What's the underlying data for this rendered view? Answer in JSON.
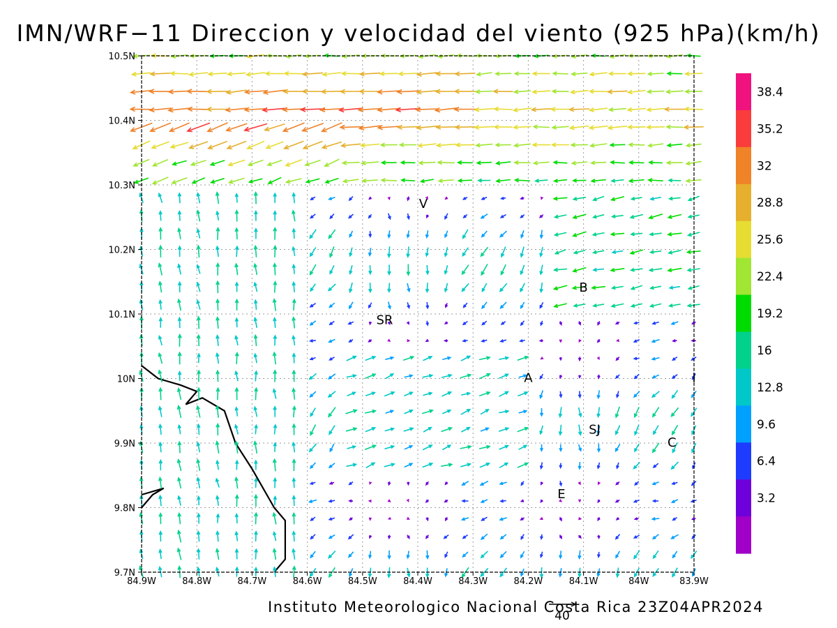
{
  "title": "IMN/WRF−11 Direccion y velocidad del viento (925 hPa)(km/h)",
  "footer": "Instituto Meteorologico Nacional Costa Rica  23Z04APR2024",
  "reference_vector": {
    "value": 40,
    "label": "40"
  },
  "axes": {
    "lon_ticks": [
      {
        "value": -84.9,
        "label": "84.9W"
      },
      {
        "value": -84.8,
        "label": "84.8W"
      },
      {
        "value": -84.7,
        "label": "84.7W"
      },
      {
        "value": -84.6,
        "label": "84.6W"
      },
      {
        "value": -84.5,
        "label": "84.5W"
      },
      {
        "value": -84.4,
        "label": "84.4W"
      },
      {
        "value": -84.3,
        "label": "84.3W"
      },
      {
        "value": -84.2,
        "label": "84.2W"
      },
      {
        "value": -84.1,
        "label": "84.1W"
      },
      {
        "value": -84.0,
        "label": "84W"
      },
      {
        "value": -83.9,
        "label": "83.9W"
      }
    ],
    "lat_ticks": [
      {
        "value": 10.5,
        "label": "10.5N"
      },
      {
        "value": 10.4,
        "label": "10.4N"
      },
      {
        "value": 10.3,
        "label": "10.3N"
      },
      {
        "value": 10.2,
        "label": "10.2N"
      },
      {
        "value": 10.1,
        "label": "10.1N"
      },
      {
        "value": 10.0,
        "label": "10N"
      },
      {
        "value": 9.9,
        "label": "9.9N"
      },
      {
        "value": 9.8,
        "label": "9.8N"
      },
      {
        "value": 9.7,
        "label": "9.7N"
      }
    ],
    "lon_range": [
      -84.9,
      -83.9
    ],
    "lat_range": [
      9.7,
      10.5
    ],
    "grid": true
  },
  "colorbar": {
    "labels": [
      "38.4",
      "35.2",
      "32",
      "28.8",
      "25.6",
      "22.4",
      "19.2",
      "16",
      "12.8",
      "9.6",
      "6.4",
      "3.2"
    ],
    "colors": [
      "#f0127f",
      "#fa3c3c",
      "#f08228",
      "#e6af2d",
      "#e6dc32",
      "#a0e632",
      "#00dc00",
      "#00d28c",
      "#00c8c8",
      "#00a0ff",
      "#1e3cff",
      "#6e00dc",
      "#a000c8"
    ]
  },
  "places": [
    {
      "label": "V",
      "lon": -84.39,
      "lat": 10.27
    },
    {
      "label": "B",
      "lon": -84.1,
      "lat": 10.14
    },
    {
      "label": "SR",
      "lon": -84.46,
      "lat": 10.09
    },
    {
      "label": "A",
      "lon": -84.2,
      "lat": 10.0
    },
    {
      "label": "SJ",
      "lon": -84.08,
      "lat": 9.92
    },
    {
      "label": "C",
      "lon": -83.94,
      "lat": 9.9
    },
    {
      "label": "E",
      "lon": -84.14,
      "lat": 9.82
    },
    {
      "label": "I",
      "lon": -83.9,
      "lat": 10.0
    }
  ],
  "coastline": [
    [
      -84.9,
      10.02
    ],
    [
      -84.87,
      10.0
    ],
    [
      -84.83,
      9.99
    ],
    [
      -84.8,
      9.98
    ],
    [
      -84.82,
      9.96
    ],
    [
      -84.79,
      9.97
    ],
    [
      -84.75,
      9.95
    ],
    [
      -84.73,
      9.9
    ],
    [
      -84.7,
      9.86
    ],
    [
      -84.68,
      9.83
    ],
    [
      -84.66,
      9.8
    ],
    [
      -84.64,
      9.78
    ],
    [
      -84.64,
      9.72
    ],
    [
      -84.66,
      9.7
    ]
  ],
  "coastline2": [
    [
      -84.9,
      9.8
    ],
    [
      -84.88,
      9.82
    ],
    [
      -84.86,
      9.83
    ],
    [
      -84.9,
      9.82
    ]
  ]
}
